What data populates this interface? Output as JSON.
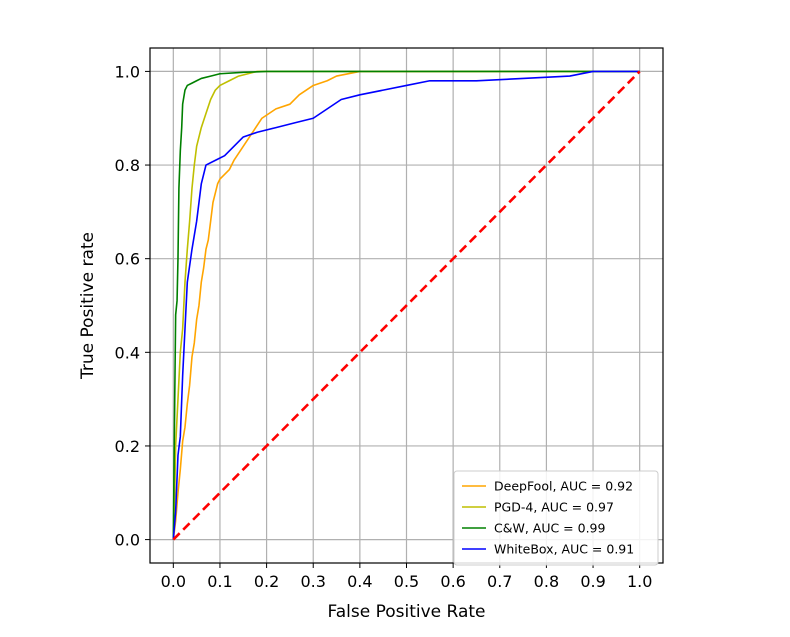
{
  "chart_data": {
    "type": "line",
    "title": "",
    "xlabel": "False Positive Rate",
    "ylabel": "True Positive rate",
    "xlim": [
      -0.05,
      1.05
    ],
    "ylim": [
      -0.05,
      1.05
    ],
    "xticks": [
      0.0,
      0.1,
      0.2,
      0.3,
      0.4,
      0.5,
      0.6,
      0.7,
      0.8,
      0.9,
      1.0
    ],
    "yticks": [
      0.0,
      0.2,
      0.4,
      0.6,
      0.8,
      1.0
    ],
    "tick_labels_x": [
      "0.0",
      "0.1",
      "0.2",
      "0.3",
      "0.4",
      "0.5",
      "0.6",
      "0.7",
      "0.8",
      "0.9",
      "1.0"
    ],
    "tick_labels_y": [
      "0.0",
      "0.2",
      "0.4",
      "0.6",
      "0.8",
      "1.0"
    ],
    "grid": true,
    "legend_position": "bottom-right",
    "series": [
      {
        "name": "DeepFool, AUC = 0.92",
        "color": "#ffa500",
        "style": "solid",
        "points": [
          [
            0.0,
            0.0
          ],
          [
            0.005,
            0.04
          ],
          [
            0.01,
            0.1
          ],
          [
            0.015,
            0.15
          ],
          [
            0.02,
            0.21
          ],
          [
            0.025,
            0.24
          ],
          [
            0.03,
            0.29
          ],
          [
            0.035,
            0.33
          ],
          [
            0.04,
            0.39
          ],
          [
            0.045,
            0.42
          ],
          [
            0.05,
            0.47
          ],
          [
            0.055,
            0.5
          ],
          [
            0.06,
            0.55
          ],
          [
            0.065,
            0.58
          ],
          [
            0.07,
            0.62
          ],
          [
            0.075,
            0.64
          ],
          [
            0.08,
            0.68
          ],
          [
            0.085,
            0.72
          ],
          [
            0.09,
            0.74
          ],
          [
            0.095,
            0.76
          ],
          [
            0.1,
            0.77
          ],
          [
            0.12,
            0.79
          ],
          [
            0.13,
            0.81
          ],
          [
            0.15,
            0.84
          ],
          [
            0.17,
            0.87
          ],
          [
            0.19,
            0.9
          ],
          [
            0.22,
            0.92
          ],
          [
            0.25,
            0.93
          ],
          [
            0.27,
            0.95
          ],
          [
            0.3,
            0.97
          ],
          [
            0.33,
            0.98
          ],
          [
            0.35,
            0.99
          ],
          [
            0.4,
            1.0
          ],
          [
            1.0,
            1.0
          ]
        ]
      },
      {
        "name": "PGD-4, AUC = 0.97",
        "color": "#bfbf00",
        "style": "solid",
        "points": [
          [
            0.0,
            0.0
          ],
          [
            0.003,
            0.1
          ],
          [
            0.005,
            0.2
          ],
          [
            0.01,
            0.3
          ],
          [
            0.015,
            0.4
          ],
          [
            0.02,
            0.45
          ],
          [
            0.025,
            0.55
          ],
          [
            0.03,
            0.62
          ],
          [
            0.035,
            0.68
          ],
          [
            0.04,
            0.75
          ],
          [
            0.045,
            0.8
          ],
          [
            0.05,
            0.84
          ],
          [
            0.06,
            0.88
          ],
          [
            0.07,
            0.91
          ],
          [
            0.08,
            0.94
          ],
          [
            0.09,
            0.96
          ],
          [
            0.1,
            0.97
          ],
          [
            0.12,
            0.98
          ],
          [
            0.14,
            0.99
          ],
          [
            0.18,
            1.0
          ],
          [
            1.0,
            1.0
          ]
        ]
      },
      {
        "name": "C&W, AUC = 0.99",
        "color": "#008000",
        "style": "solid",
        "points": [
          [
            0.0,
            0.0
          ],
          [
            0.001,
            0.1
          ],
          [
            0.003,
            0.3
          ],
          [
            0.005,
            0.48
          ],
          [
            0.008,
            0.51
          ],
          [
            0.01,
            0.6
          ],
          [
            0.012,
            0.75
          ],
          [
            0.015,
            0.83
          ],
          [
            0.018,
            0.88
          ],
          [
            0.02,
            0.93
          ],
          [
            0.025,
            0.96
          ],
          [
            0.03,
            0.97
          ],
          [
            0.04,
            0.975
          ],
          [
            0.05,
            0.98
          ],
          [
            0.06,
            0.985
          ],
          [
            0.08,
            0.99
          ],
          [
            0.1,
            0.995
          ],
          [
            0.15,
            0.998
          ],
          [
            0.2,
            1.0
          ],
          [
            1.0,
            1.0
          ]
        ]
      },
      {
        "name": "WhiteBox, AUC = 0.91",
        "color": "#0000ff",
        "style": "solid",
        "points": [
          [
            0.0,
            0.0
          ],
          [
            0.005,
            0.06
          ],
          [
            0.01,
            0.18
          ],
          [
            0.015,
            0.22
          ],
          [
            0.02,
            0.35
          ],
          [
            0.025,
            0.45
          ],
          [
            0.03,
            0.55
          ],
          [
            0.04,
            0.62
          ],
          [
            0.05,
            0.68
          ],
          [
            0.055,
            0.72
          ],
          [
            0.06,
            0.76
          ],
          [
            0.07,
            0.8
          ],
          [
            0.09,
            0.81
          ],
          [
            0.11,
            0.82
          ],
          [
            0.13,
            0.84
          ],
          [
            0.15,
            0.86
          ],
          [
            0.18,
            0.87
          ],
          [
            0.22,
            0.88
          ],
          [
            0.26,
            0.89
          ],
          [
            0.3,
            0.9
          ],
          [
            0.33,
            0.92
          ],
          [
            0.36,
            0.94
          ],
          [
            0.4,
            0.95
          ],
          [
            0.45,
            0.96
          ],
          [
            0.5,
            0.97
          ],
          [
            0.55,
            0.98
          ],
          [
            0.65,
            0.98
          ],
          [
            0.75,
            0.985
          ],
          [
            0.85,
            0.99
          ],
          [
            0.9,
            1.0
          ],
          [
            1.0,
            1.0
          ]
        ]
      },
      {
        "name": "",
        "color": "#ff0000",
        "style": "dashed",
        "points": [
          [
            0.0,
            0.0
          ],
          [
            1.0,
            1.0
          ]
        ]
      }
    ]
  }
}
